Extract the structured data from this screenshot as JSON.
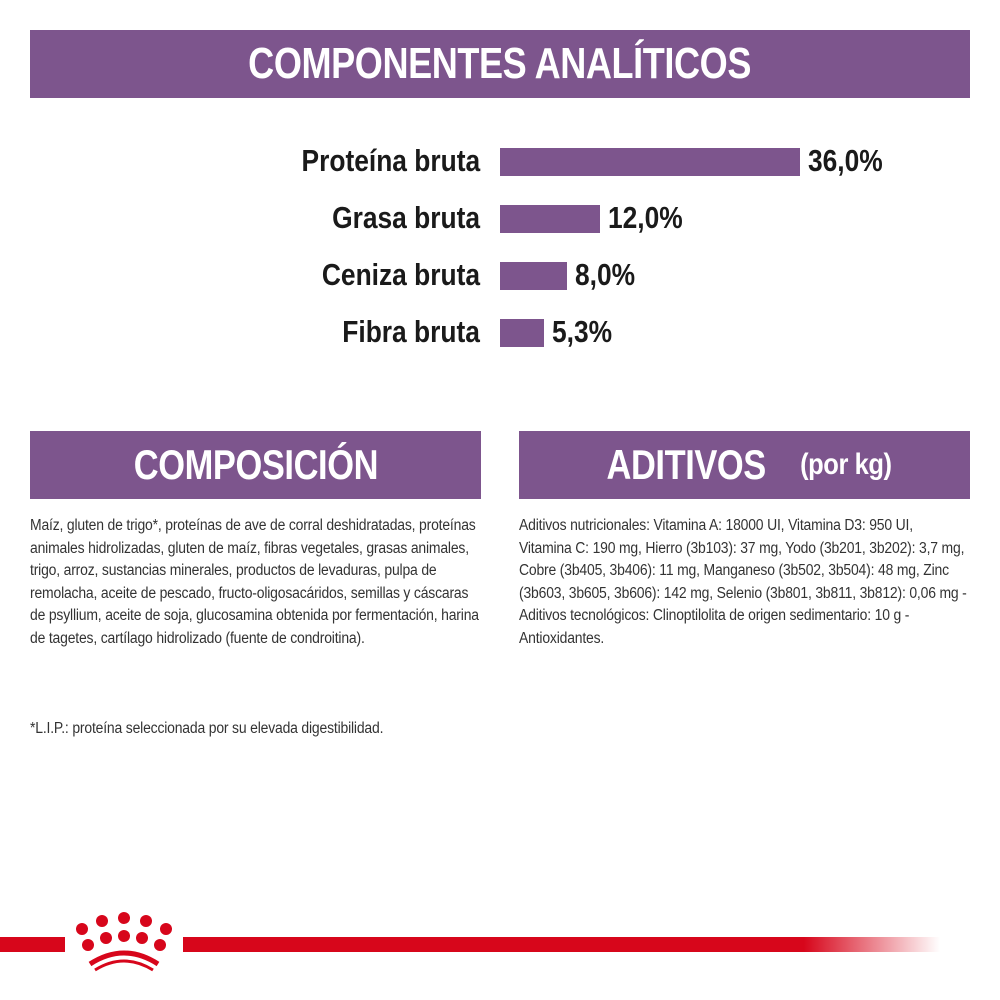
{
  "header": {
    "title": "COMPONENTES ANALÍTICOS"
  },
  "chart_data": {
    "type": "bar",
    "orientation": "horizontal",
    "title": "COMPONENTES ANALÍTICOS",
    "categories": [
      "Proteína bruta",
      "Grasa bruta",
      "Ceniza bruta",
      "Fibra bruta"
    ],
    "values": [
      36.0,
      12.0,
      8.0,
      5.3
    ],
    "value_labels": [
      "36,0%",
      "12,0%",
      "8,0%",
      "5,3%"
    ],
    "unit": "%",
    "xlabel": "",
    "ylabel": "",
    "grid": false,
    "legend": null,
    "bar_color": "#7d558d"
  },
  "composicion": {
    "title": "COMPOSICIÓN",
    "text": "Maíz, gluten de trigo*, proteínas de ave de corral deshidratadas, proteínas animales hidrolizadas, gluten de maíz, fibras vegetales, grasas animales, trigo, arroz, sustancias minerales, productos de levaduras, pulpa de remolacha, aceite de pescado, fructo-oligosacáridos, semillas y cáscaras de psyllium, aceite de soja, glucosamina obtenida por fermentación, harina de tagetes, cartílago hidrolizado (fuente de condroitina).",
    "note": "*L.I.P.: proteína seleccionada por su elevada digestibilidad."
  },
  "aditivos": {
    "title": "ADITIVOS",
    "subtitle": "(por kg)",
    "text": "Aditivos nutricionales: Vitamina A: 18000 UI, Vitamina D3: 950 UI, Vitamina C: 190 mg, Hierro (3b103): 37 mg, Yodo (3b201, 3b202): 3,7 mg, Cobre (3b405, 3b406): 11 mg, Manganeso (3b502, 3b504): 48 mg, Zinc (3b603, 3b605, 3b606): 142 mg, Selenio (3b801, 3b811, 3b812): 0,06 mg - Aditivos tecnológicos: Clinoptilolita de origen sedimentario: 10 g - Antioxidantes."
  },
  "footer": {
    "logo_icon": "crown-icon",
    "brand_color": "#d7061b"
  },
  "colors": {
    "accent": "#7d558d",
    "text": "#1a1a1a",
    "brand_red": "#d7061b"
  }
}
